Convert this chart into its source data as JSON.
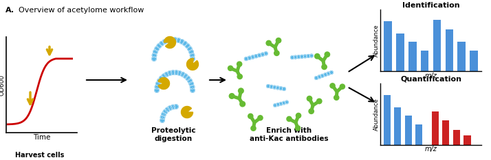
{
  "title_bold": "A.",
  "title_rest": "  Overview of acetylome workflow",
  "background_color": "#ffffff",
  "harvest_cells_label": "Harvest cells",
  "time_label": "Time",
  "od_label": "OD",
  "od_sub": "600",
  "proteolytic_label": "Proteolytic\ndigestion",
  "enrich_label": "Enrich with\nanti-Kac antibodies",
  "identification_label": "Identification",
  "quantification_label": "Quantification",
  "abundance_label": "Abundance",
  "mz_label": "m/z",
  "blue_color": "#5bb8e8",
  "bar_blue": "#4a90d9",
  "red_color": "#cc2222",
  "yellow_color": "#d4a800",
  "green_color": "#66bb33",
  "arrow_color": "#111111",
  "id_bars": [
    0.93,
    0.7,
    0.55,
    0.38,
    0.96,
    0.78,
    0.55,
    0.38
  ],
  "quant_bars_blue": [
    0.93,
    0.7,
    0.55,
    0.38
  ],
  "quant_bars_red": [
    0.62,
    0.46,
    0.28,
    0.18
  ],
  "protein_color": "#5bb8e8",
  "acetyl_color": "#d4a800",
  "curve_color": "#cc0000"
}
